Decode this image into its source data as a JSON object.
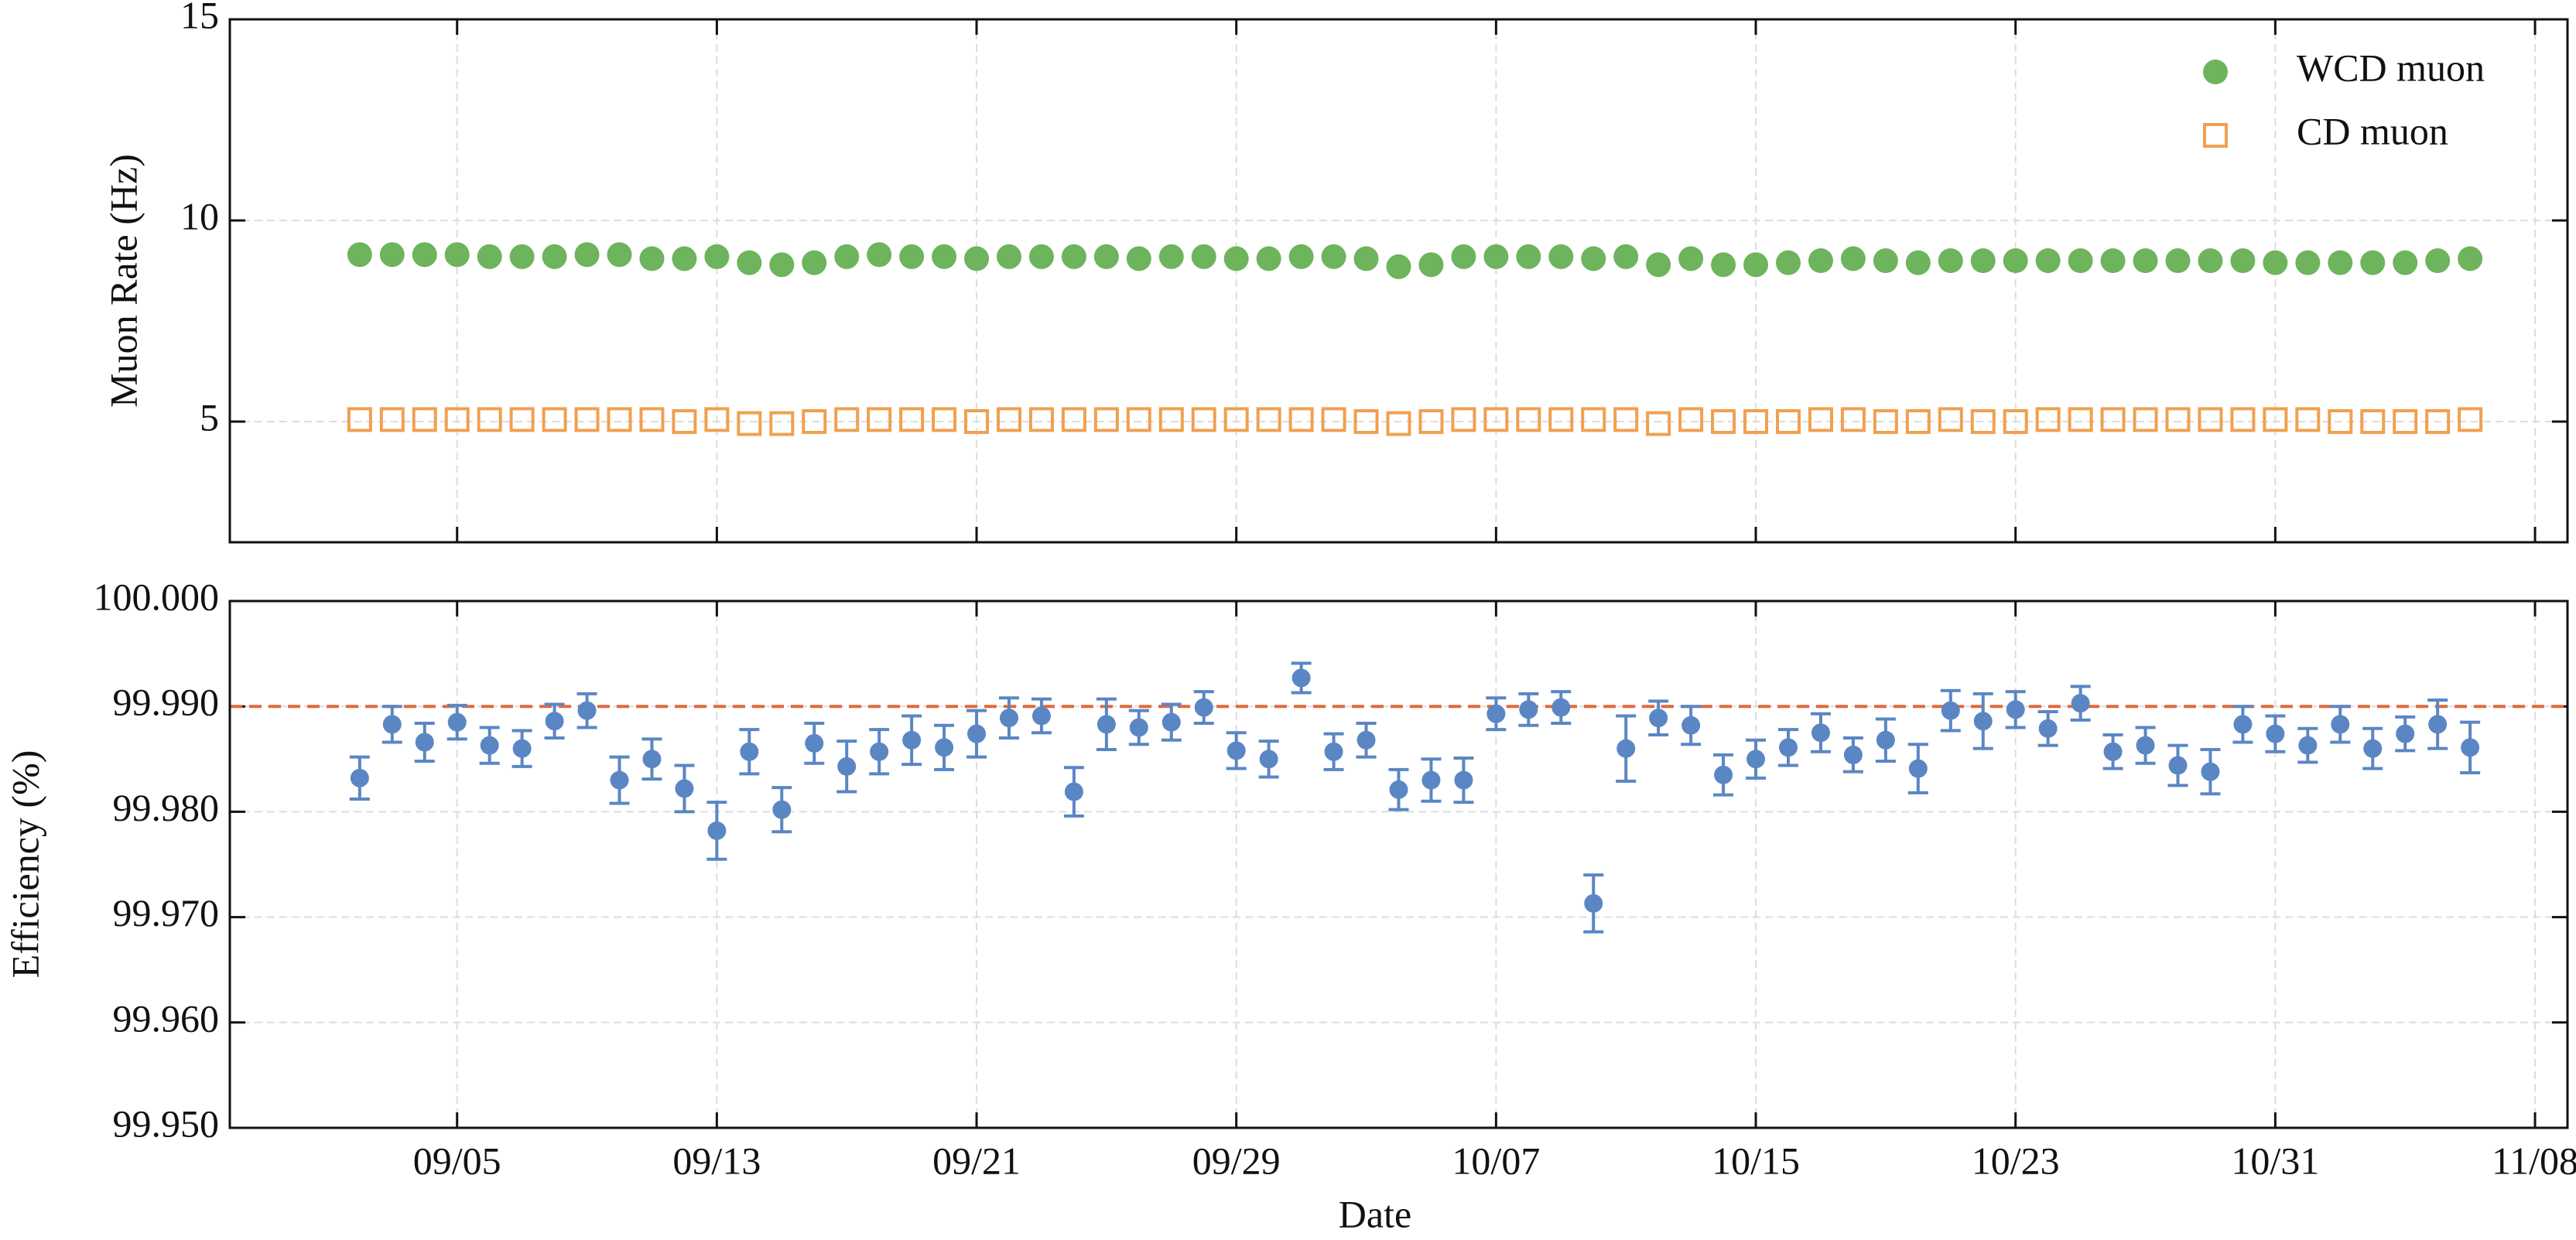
{
  "chart_data": [
    {
      "type": "scatter",
      "ylabel": "Muon Rate (Hz)",
      "x": [
        "09/02",
        "09/03",
        "09/04",
        "09/05",
        "09/06",
        "09/07",
        "09/08",
        "09/09",
        "09/10",
        "09/11",
        "09/12",
        "09/13",
        "09/14",
        "09/15",
        "09/16",
        "09/17",
        "09/18",
        "09/19",
        "09/20",
        "09/21",
        "09/22",
        "09/23",
        "09/24",
        "09/25",
        "09/26",
        "09/27",
        "09/28",
        "09/29",
        "09/30",
        "10/01",
        "10/02",
        "10/03",
        "10/04",
        "10/05",
        "10/06",
        "10/07",
        "10/08",
        "10/09",
        "10/10",
        "10/11",
        "10/12",
        "10/13",
        "10/14",
        "10/15",
        "10/16",
        "10/17",
        "10/18",
        "10/19",
        "10/20",
        "10/21",
        "10/22",
        "10/23",
        "10/24",
        "10/25",
        "10/26",
        "10/27",
        "10/28",
        "10/29",
        "10/30",
        "10/31",
        "11/01",
        "11/02",
        "11/03",
        "11/04",
        "11/05",
        "11/06"
      ],
      "xlim": [
        "08/29",
        "11/09"
      ],
      "ylim": [
        2,
        15
      ],
      "yticks": [
        5,
        10,
        15
      ],
      "grid": true,
      "legend": "upper right",
      "series": [
        {
          "name": "WCD muon",
          "color": "#6db45c",
          "marker": "filled-circle",
          "values": [
            9.15,
            9.15,
            9.15,
            9.15,
            9.1,
            9.1,
            9.1,
            9.15,
            9.15,
            9.05,
            9.05,
            9.1,
            8.95,
            8.9,
            8.95,
            9.1,
            9.15,
            9.1,
            9.1,
            9.05,
            9.1,
            9.1,
            9.1,
            9.1,
            9.05,
            9.1,
            9.1,
            9.05,
            9.05,
            9.1,
            9.1,
            9.05,
            8.85,
            8.9,
            9.1,
            9.1,
            9.1,
            9.1,
            9.05,
            9.1,
            8.9,
            9.05,
            8.9,
            8.9,
            8.95,
            9.0,
            9.05,
            9.0,
            8.95,
            9.0,
            9.0,
            9.0,
            9.0,
            9.0,
            9.0,
            9.0,
            9.0,
            9.0,
            9.0,
            8.95,
            8.95,
            8.95,
            8.95,
            8.95,
            9.0,
            9.05
          ]
        },
        {
          "name": "CD muon",
          "color": "#f0a050",
          "marker": "open-square",
          "values": [
            5.05,
            5.05,
            5.05,
            5.05,
            5.05,
            5.05,
            5.05,
            5.05,
            5.05,
            5.05,
            5.0,
            5.05,
            4.95,
            4.95,
            5.0,
            5.05,
            5.05,
            5.05,
            5.05,
            5.0,
            5.05,
            5.05,
            5.05,
            5.05,
            5.05,
            5.05,
            5.05,
            5.05,
            5.05,
            5.05,
            5.05,
            5.0,
            4.95,
            5.0,
            5.05,
            5.05,
            5.05,
            5.05,
            5.05,
            5.05,
            4.95,
            5.05,
            5.0,
            5.0,
            5.0,
            5.05,
            5.05,
            5.0,
            5.0,
            5.05,
            5.0,
            5.0,
            5.05,
            5.05,
            5.05,
            5.05,
            5.05,
            5.05,
            5.05,
            5.05,
            5.05,
            5.0,
            5.0,
            5.0,
            5.0,
            5.05
          ]
        }
      ]
    },
    {
      "type": "errorbar",
      "xlabel": "Date",
      "ylabel": "Efficiency (%)",
      "x": [
        "09/02",
        "09/03",
        "09/04",
        "09/05",
        "09/06",
        "09/07",
        "09/08",
        "09/09",
        "09/10",
        "09/11",
        "09/12",
        "09/13",
        "09/14",
        "09/15",
        "09/16",
        "09/17",
        "09/18",
        "09/19",
        "09/20",
        "09/21",
        "09/22",
        "09/23",
        "09/24",
        "09/25",
        "09/26",
        "09/27",
        "09/28",
        "09/29",
        "09/30",
        "10/01",
        "10/02",
        "10/03",
        "10/04",
        "10/05",
        "10/06",
        "10/07",
        "10/08",
        "10/09",
        "10/10",
        "10/11",
        "10/12",
        "10/13",
        "10/14",
        "10/15",
        "10/16",
        "10/17",
        "10/18",
        "10/19",
        "10/20",
        "10/21",
        "10/22",
        "10/23",
        "10/24",
        "10/25",
        "10/26",
        "10/27",
        "10/28",
        "10/29",
        "10/30",
        "10/31",
        "11/01",
        "11/02",
        "11/03",
        "11/04",
        "11/05",
        "11/06"
      ],
      "xlim": [
        "08/29",
        "11/09"
      ],
      "xticks": [
        "09/05",
        "09/13",
        "09/21",
        "09/29",
        "10/07",
        "10/15",
        "10/23",
        "10/31",
        "11/08"
      ],
      "ylim": [
        99.95,
        100.0
      ],
      "yticks": [
        {
          "value": 99.95,
          "label": "99.950"
        },
        {
          "value": 99.96,
          "label": "99.960"
        },
        {
          "value": 99.97,
          "label": "99.970"
        },
        {
          "value": 99.98,
          "label": "99.980"
        },
        {
          "value": 99.99,
          "label": "99.990"
        },
        {
          "value": 100.0,
          "label": "100.000"
        }
      ],
      "grid": true,
      "reference_line": {
        "value": 99.99,
        "color": "#e4683c"
      },
      "series": [
        {
          "color": "#5a86c4",
          "values": [
            99.9832,
            99.9883,
            99.9866,
            99.9885,
            99.9863,
            99.986,
            99.9886,
            99.9896,
            99.983,
            99.985,
            99.9822,
            99.9782,
            99.9857,
            99.9802,
            99.9865,
            99.9843,
            99.9857,
            99.9868,
            99.9861,
            99.9874,
            99.9889,
            99.9891,
            99.9819,
            99.9883,
            99.988,
            99.9885,
            99.9899,
            99.9858,
            99.985,
            99.9927,
            99.9857,
            99.9868,
            99.9821,
            99.983,
            99.983,
            99.9893,
            99.9897,
            99.9899,
            99.9713,
            99.986,
            99.9889,
            99.9882,
            99.9835,
            99.985,
            99.9861,
            99.9875,
            99.9854,
            99.9868,
            99.9841,
            99.9896,
            99.9886,
            99.9897,
            99.9879,
            99.9903,
            99.9857,
            99.9863,
            99.9844,
            99.9838,
            99.9883,
            99.9874,
            99.9863,
            99.9883,
            99.986,
            99.9874,
            99.9883,
            99.9861
          ],
          "errors": [
            0.002,
            0.0017,
            0.0018,
            0.0016,
            0.0017,
            0.0017,
            0.0016,
            0.0016,
            0.0022,
            0.0019,
            0.0022,
            0.0027,
            0.0021,
            0.0021,
            0.0019,
            0.0024,
            0.0021,
            0.0023,
            0.0021,
            0.0022,
            0.0019,
            0.0016,
            0.0023,
            0.0024,
            0.0016,
            0.0017,
            0.0015,
            0.0017,
            0.0017,
            0.0014,
            0.0017,
            0.0016,
            0.0019,
            0.002,
            0.0021,
            0.0015,
            0.0015,
            0.0015,
            0.0027,
            0.0031,
            0.0016,
            0.0018,
            0.0019,
            0.0018,
            0.0017,
            0.0018,
            0.0016,
            0.002,
            0.0023,
            0.0019,
            0.0026,
            0.0017,
            0.0016,
            0.0016,
            0.0016,
            0.0017,
            0.0019,
            0.0021,
            0.0017,
            0.0017,
            0.0016,
            0.0017,
            0.0019,
            0.0016,
            0.0023,
            0.0024
          ]
        }
      ]
    }
  ]
}
